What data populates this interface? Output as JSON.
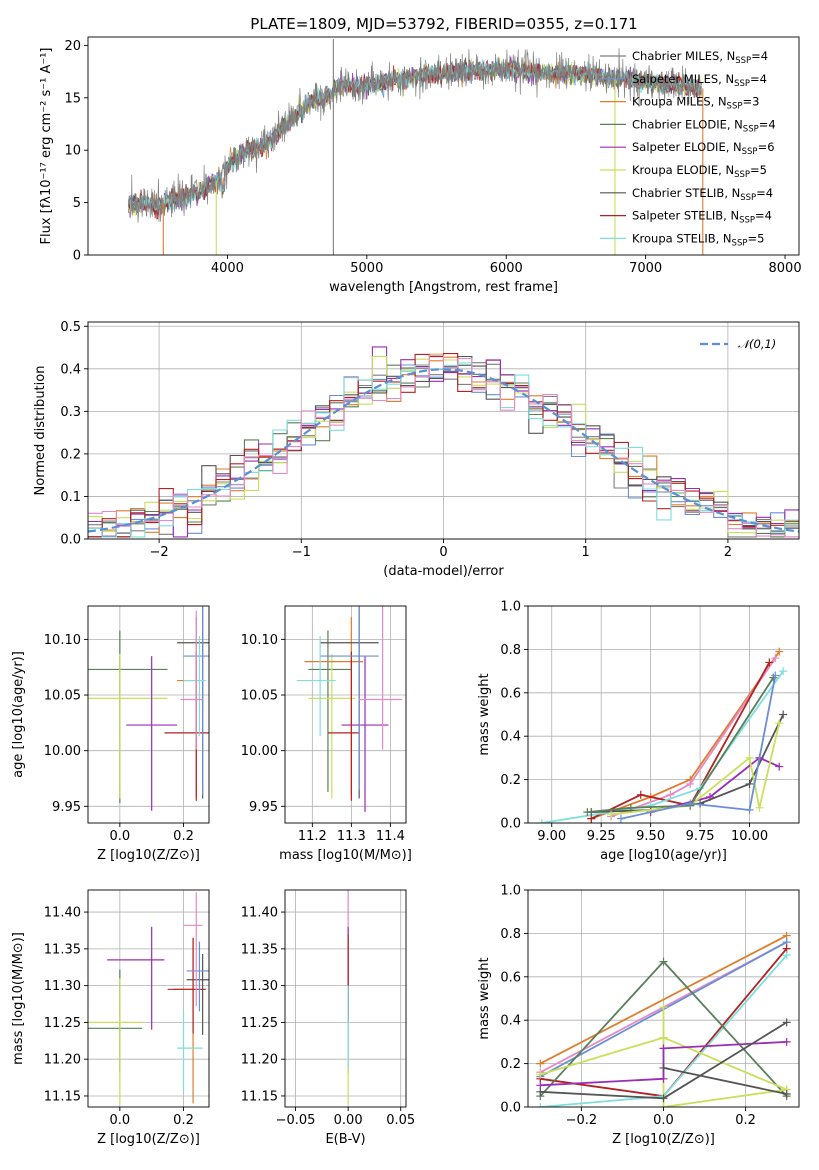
{
  "figure": {
    "title": "PLATE=1809, MJD=53792, FIBERID=0355, z=0.171"
  },
  "colors": {
    "Chabrier MILES": "#7f7f7f",
    "Salpeter MILES": "#6b8fd6",
    "Kroupa MILES": "#e07d2c",
    "Chabrier ELODIE": "#5a7f5a",
    "Salpeter ELODIE": "#9b2db5",
    "Kroupa ELODIE": "#c8e05a",
    "Chabrier STELIB": "#555555",
    "Salpeter STELIB": "#b22222",
    "Kroupa STELIB": "#7fdede",
    "Extra pink": "#e58ac8",
    "gaussian": "#5b8fd6"
  },
  "chart_data": [
    {
      "id": "spectrum",
      "type": "line",
      "xlabel": "wavelength [Angstrom, rest frame]",
      "ylabel": "Flux [fλ10⁻¹⁷ erg cm⁻² s⁻¹ A⁻¹]",
      "xlim": [
        3000,
        8100
      ],
      "ylim": [
        0,
        20.8
      ],
      "xticks": [
        4000,
        5000,
        6000,
        7000,
        8000
      ],
      "yticks": [
        0,
        5,
        10,
        15,
        20
      ],
      "legend_position": "top-right",
      "legend": [
        {
          "name": "Chabrier MILES",
          "sub": "SSP",
          "n": "4"
        },
        {
          "name": "Salpeter MILES",
          "sub": "SSP",
          "n": "4"
        },
        {
          "name": "Kroupa MILES",
          "sub": "SSP",
          "n": "3"
        },
        {
          "name": "Chabrier ELODIE",
          "sub": "SSP",
          "n": "4"
        },
        {
          "name": "Salpeter ELODIE",
          "sub": "SSP",
          "n": "6"
        },
        {
          "name": "Kroupa ELODIE",
          "sub": "SSP",
          "n": "5"
        },
        {
          "name": "Chabrier STELIB",
          "sub": "SSP",
          "n": "4"
        },
        {
          "name": "Salpeter STELIB",
          "sub": "SSP",
          "n": "4"
        },
        {
          "name": "Kroupa STELIB",
          "sub": "SSP",
          "n": "5"
        }
      ],
      "continuum": [
        [
          3290,
          4.8
        ],
        [
          3400,
          5.0
        ],
        [
          3500,
          4.7
        ],
        [
          3600,
          5.2
        ],
        [
          3700,
          5.6
        ],
        [
          3800,
          6.0
        ],
        [
          3900,
          6.8
        ],
        [
          3950,
          7.5
        ],
        [
          4000,
          8.6
        ],
        [
          4100,
          9.7
        ],
        [
          4200,
          10.2
        ],
        [
          4300,
          10.7
        ],
        [
          4400,
          12.3
        ],
        [
          4500,
          13.3
        ],
        [
          4600,
          14.6
        ],
        [
          4700,
          15.0
        ],
        [
          4800,
          16.0
        ],
        [
          4900,
          16.2
        ],
        [
          5000,
          16.2
        ],
        [
          5100,
          16.5
        ],
        [
          5200,
          16.8
        ],
        [
          5300,
          16.9
        ],
        [
          5400,
          17.1
        ],
        [
          5500,
          17.3
        ],
        [
          5600,
          17.4
        ],
        [
          5700,
          17.6
        ],
        [
          5800,
          17.6
        ],
        [
          5900,
          17.7
        ],
        [
          6000,
          17.8
        ],
        [
          6100,
          17.6
        ],
        [
          6200,
          17.4
        ],
        [
          6300,
          17.3
        ],
        [
          6400,
          17.4
        ],
        [
          6500,
          17.2
        ],
        [
          6600,
          17.3
        ],
        [
          6700,
          17.0
        ],
        [
          6800,
          16.9
        ],
        [
          6900,
          16.8
        ],
        [
          7000,
          16.5
        ],
        [
          7100,
          16.4
        ],
        [
          7200,
          16.3
        ],
        [
          7300,
          16.1
        ],
        [
          7400,
          15.9
        ]
      ],
      "spikes": [
        3540,
        3920,
        4760,
        6780,
        7410
      ]
    },
    {
      "id": "residuals",
      "type": "histogram",
      "xlabel": "(data-model)/error",
      "ylabel": "Normed distribution",
      "xlim": [
        -2.5,
        2.5
      ],
      "ylim": [
        0,
        0.51
      ],
      "xticks": [
        -2,
        -1,
        0,
        1,
        2
      ],
      "yticks": [
        0.0,
        0.1,
        0.2,
        0.3,
        0.4,
        0.5
      ],
      "legend": [
        "N(0,1)"
      ],
      "bin_width": 0.1,
      "bin_start": -2.5
    },
    {
      "id": "age_vs_Z",
      "type": "errorbar",
      "xlabel": "Z [log10(Z/Z⊙)]",
      "ylabel": "age [log10(age/yr)]",
      "xlim": [
        -0.1,
        0.28
      ],
      "ylim": [
        9.935,
        10.13
      ],
      "xticks": [
        0.0,
        0.2
      ],
      "yticks": [
        9.95,
        10.0,
        10.05,
        10.1
      ],
      "points": [
        {
          "s": "Chabrier ELODIE",
          "x": 0.0,
          "y": 10.073,
          "xe": [
            0.1,
            0.15
          ],
          "ye": [
            0.12,
            0.035
          ]
        },
        {
          "s": "Kroupa ELODIE",
          "x": 0.0,
          "y": 10.047,
          "xe": [
            0.1,
            0.15
          ],
          "ye": [
            0.09,
            0.04
          ]
        },
        {
          "s": "Salpeter ELODIE",
          "x": 0.1,
          "y": 10.023,
          "xe": [
            0.08,
            0.08
          ],
          "ye": [
            0.077,
            0.062
          ]
        },
        {
          "s": "Kroupa MILES",
          "x": 0.24,
          "y": 10.063,
          "xe": [
            0.06,
            0.0
          ],
          "ye": [
            0.105,
            0.057
          ]
        },
        {
          "s": "Salpeter STELIB",
          "x": 0.24,
          "y": 10.016,
          "xe": [
            0.1,
            0.04
          ],
          "ye": [
            0.061,
            0.073
          ]
        },
        {
          "s": "Chabrier STELIB",
          "x": 0.26,
          "y": 10.097,
          "xe": [
            0.08,
            0.02
          ],
          "ye": [
            0.14,
            0.032
          ]
        },
        {
          "s": "Salpeter MILES",
          "x": 0.26,
          "y": 10.085,
          "xe": [
            0.06,
            0.02
          ],
          "ye": [
            0.125,
            0.047
          ]
        },
        {
          "s": "Kroupa STELIB",
          "x": 0.25,
          "y": 10.063,
          "xe": [
            0.05,
            0.02
          ],
          "ye": [
            0.05,
            0.04
          ]
        },
        {
          "s": "Extra pink",
          "x": 0.24,
          "y": 10.046,
          "xe": [
            0.05,
            0.02
          ],
          "ye": [
            0.045,
            0.08
          ]
        }
      ]
    },
    {
      "id": "age_vs_mass",
      "type": "errorbar",
      "xlabel": "mass [log10(M/M⊙)]",
      "ylabel": "",
      "xlim": [
        11.13,
        11.44
      ],
      "ylim": [
        9.935,
        10.13
      ],
      "xticks": [
        11.2,
        11.3,
        11.4
      ],
      "yticks": [
        9.95,
        10.0,
        10.05,
        10.1
      ],
      "points": [
        {
          "s": "Chabrier ELODIE",
          "x": 11.24,
          "y": 10.073,
          "xe": [
            0.05,
            0.06
          ],
          "ye": [
            0.11,
            0.035
          ]
        },
        {
          "s": "Kroupa ELODIE",
          "x": 11.25,
          "y": 10.047,
          "xe": [
            0.06,
            0.06
          ],
          "ye": [
            0.09,
            0.04
          ]
        },
        {
          "s": "Salpeter ELODIE",
          "x": 11.335,
          "y": 10.023,
          "xe": [
            0.06,
            0.06
          ],
          "ye": [
            0.078,
            0.062
          ]
        },
        {
          "s": "Kroupa MILES",
          "x": 11.3,
          "y": 10.08,
          "xe": [
            0.12,
            0.03
          ],
          "ye": [
            0.12,
            0.04
          ]
        },
        {
          "s": "Salpeter STELIB",
          "x": 11.3,
          "y": 10.016,
          "xe": [
            0.06,
            0.02
          ],
          "ye": [
            0.061,
            0.073
          ]
        },
        {
          "s": "Chabrier STELIB",
          "x": 11.32,
          "y": 10.097,
          "xe": [
            0.1,
            0.05
          ],
          "ye": [
            0.14,
            0.032
          ]
        },
        {
          "s": "Salpeter MILES",
          "x": 11.32,
          "y": 10.085,
          "xe": [
            0.1,
            0.05
          ],
          "ye": [
            0.12,
            0.047
          ]
        },
        {
          "s": "Kroupa STELIB",
          "x": 11.22,
          "y": 10.063,
          "xe": [
            0.06,
            0.04
          ],
          "ye": [
            0.05,
            0.04
          ]
        },
        {
          "s": "Extra pink",
          "x": 11.38,
          "y": 10.046,
          "xe": [
            0.06,
            0.05
          ],
          "ye": [
            0.045,
            0.09
          ]
        }
      ]
    },
    {
      "id": "massweight_vs_age",
      "type": "line",
      "xlabel": "age [log10(age/yr)]",
      "ylabel": "mass weight",
      "xlim": [
        8.88,
        10.25
      ],
      "ylim": [
        0,
        1.0
      ],
      "xticks": [
        9.0,
        9.25,
        9.5,
        9.75,
        10.0
      ],
      "yticks": [
        0.0,
        0.2,
        0.4,
        0.6,
        0.8,
        1.0
      ],
      "series": [
        {
          "s": "Kroupa MILES",
          "x": [
            9.2,
            9.5,
            9.7,
            10.15
          ],
          "y": [
            0.02,
            0.12,
            0.2,
            0.79
          ]
        },
        {
          "s": "Extra pink",
          "x": [
            9.3,
            9.6,
            9.7,
            10.13
          ],
          "y": [
            0.03,
            0.13,
            0.18,
            0.76
          ]
        },
        {
          "s": "Salpeter STELIB",
          "x": [
            9.2,
            9.45,
            9.7,
            10.1
          ],
          "y": [
            0.02,
            0.13,
            0.08,
            0.74
          ]
        },
        {
          "s": "Kroupa STELIB",
          "x": [
            8.95,
            9.5,
            9.75,
            10.17
          ],
          "y": [
            0.0,
            0.08,
            0.16,
            0.7
          ]
        },
        {
          "s": "Chabrier STELIB",
          "x": [
            9.2,
            9.5,
            9.75,
            10.0,
            10.17
          ],
          "y": [
            0.05,
            0.06,
            0.09,
            0.18,
            0.5
          ]
        },
        {
          "s": "Salpeter ELODIE",
          "x": [
            9.5,
            9.8,
            10.05,
            10.15
          ],
          "y": [
            0.05,
            0.12,
            0.3,
            0.26
          ]
        },
        {
          "s": "Kroupa ELODIE",
          "x": [
            9.3,
            9.7,
            10.0,
            10.05,
            10.15
          ],
          "y": [
            0.04,
            0.08,
            0.3,
            0.07,
            0.46
          ]
        },
        {
          "s": "Chabrier ELODIE",
          "x": [
            9.18,
            9.4,
            9.7,
            10.12
          ],
          "y": [
            0.05,
            0.07,
            0.08,
            0.67
          ]
        },
        {
          "s": "Salpeter MILES",
          "x": [
            9.35,
            9.7,
            10.0,
            10.13
          ],
          "y": [
            0.02,
            0.09,
            0.06,
            0.68
          ]
        }
      ]
    },
    {
      "id": "mass_vs_Z",
      "type": "errorbar",
      "xlabel": "Z [log10(Z/Z⊙)]",
      "ylabel": "mass [log10(M/M⊙)]",
      "xlim": [
        -0.1,
        0.28
      ],
      "ylim": [
        11.135,
        11.43
      ],
      "xticks": [
        0.0,
        0.2
      ],
      "yticks": [
        11.15,
        11.2,
        11.25,
        11.3,
        11.35,
        11.4
      ],
      "points": [
        {
          "s": "Chabrier ELODIE",
          "x": 0.0,
          "y": 11.242,
          "xe": [
            0.1,
            0.07
          ],
          "ye": [
            0.06,
            0.08
          ]
        },
        {
          "s": "Kroupa ELODIE",
          "x": 0.0,
          "y": 11.25,
          "xe": [
            0.1,
            0.07
          ],
          "ye": [
            0.11,
            0.06
          ]
        },
        {
          "s": "Salpeter ELODIE",
          "x": 0.1,
          "y": 11.335,
          "xe": [
            0.14,
            0.04
          ],
          "ye": [
            0.095,
            0.045
          ]
        },
        {
          "s": "Kroupa MILES",
          "x": 0.23,
          "y": 11.295,
          "xe": [
            0.06,
            0.0
          ],
          "ye": [
            0.155,
            0.07
          ]
        },
        {
          "s": "Salpeter STELIB",
          "x": 0.23,
          "y": 11.295,
          "xe": [
            0.08,
            0.04
          ],
          "ye": [
            0.06,
            0.07
          ]
        },
        {
          "s": "Chabrier STELIB",
          "x": 0.26,
          "y": 11.308,
          "xe": [
            0.05,
            0.02
          ],
          "ye": [
            0.075,
            0.035
          ]
        },
        {
          "s": "Salpeter MILES",
          "x": 0.25,
          "y": 11.32,
          "xe": [
            0.04,
            0.03
          ],
          "ye": [
            0.055,
            0.04
          ]
        },
        {
          "s": "Kroupa STELIB",
          "x": 0.2,
          "y": 11.215,
          "xe": [
            0.02,
            0.06
          ],
          "ye": [
            0.06,
            0.05
          ]
        },
        {
          "s": "Extra pink",
          "x": 0.24,
          "y": 11.382,
          "xe": [
            0.04,
            0.02
          ],
          "ye": [
            0.11,
            0.045
          ]
        }
      ]
    },
    {
      "id": "mass_vs_ebv",
      "type": "errorbar",
      "xlabel": "E(B-V)",
      "ylabel": "",
      "xlim": [
        -0.06,
        0.055
      ],
      "ylim": [
        11.135,
        11.43
      ],
      "xticks": [
        -0.05,
        0.0,
        0.05
      ],
      "yticks": [
        11.15,
        11.2,
        11.25,
        11.3,
        11.35,
        11.4
      ],
      "points": [
        {
          "s": "Extra pink",
          "x": 0.0,
          "y": 11.3,
          "xe": [
            0,
            0
          ],
          "ye": [
            0.12,
            0.13
          ]
        },
        {
          "s": "Salpeter ELODIE",
          "x": 0.0,
          "y": 11.33,
          "xe": [
            0,
            0
          ],
          "ye": [
            0.08,
            0.05
          ]
        },
        {
          "s": "Kroupa ELODIE",
          "x": 0.0,
          "y": 11.2,
          "xe": [
            0,
            0
          ],
          "ye": [
            0.06,
            0.06
          ]
        },
        {
          "s": "Salpeter STELIB",
          "x": 0.0,
          "y": 11.3,
          "xe": [
            0,
            0
          ],
          "ye": [
            0.05,
            0.07
          ]
        },
        {
          "s": "Kroupa STELIB",
          "x": 0.0,
          "y": 11.25,
          "xe": [
            0,
            0
          ],
          "ye": [
            0.06,
            0.05
          ]
        }
      ]
    },
    {
      "id": "massweight_vs_Z",
      "type": "line",
      "xlabel": "Z [log10(Z/Z⊙)]",
      "ylabel": "mass weight",
      "xlim": [
        -0.33,
        0.33
      ],
      "ylim": [
        0,
        1.0
      ],
      "xticks": [
        -0.2,
        0.0,
        0.2
      ],
      "yticks": [
        0.0,
        0.2,
        0.4,
        0.6,
        0.8,
        1.0
      ],
      "series": [
        {
          "s": "Kroupa MILES",
          "x": [
            -0.3,
            0.3
          ],
          "y": [
            0.2,
            0.79
          ]
        },
        {
          "s": "Extra pink",
          "x": [
            -0.3,
            0.3
          ],
          "y": [
            0.16,
            0.76
          ]
        },
        {
          "s": "Salpeter MILES",
          "x": [
            -0.3,
            0.3
          ],
          "y": [
            0.14,
            0.76
          ]
        },
        {
          "s": "Salpeter STELIB",
          "x": [
            -0.3,
            0.0,
            0.3
          ],
          "y": [
            0.13,
            0.05,
            0.73
          ]
        },
        {
          "s": "Kroupa STELIB",
          "x": [
            -0.3,
            0.0,
            0.3
          ],
          "y": [
            0.0,
            0.05,
            0.7
          ]
        },
        {
          "s": "Chabrier ELODIE",
          "x": [
            -0.3,
            0.0,
            0.3
          ],
          "y": [
            0.05,
            0.67,
            0.05
          ]
        },
        {
          "s": "Kroupa ELODIE",
          "x": [
            -0.3,
            0.0,
            0.3
          ],
          "y": [
            0.15,
            0.32,
            0.08
          ]
        },
        {
          "s": "Kroupa ELODIE",
          "x": [
            0.0,
            0.0,
            0.3
          ],
          "y": [
            0.46,
            0.0,
            0.08
          ]
        },
        {
          "s": "Salpeter ELODIE",
          "x": [
            -0.3,
            0.0,
            0.0,
            0.3
          ],
          "y": [
            0.1,
            0.13,
            0.27,
            0.3
          ]
        },
        {
          "s": "Chabrier STELIB",
          "x": [
            -0.3,
            0.0,
            0.3
          ],
          "y": [
            0.07,
            0.04,
            0.39
          ]
        },
        {
          "s": "Chabrier STELIB",
          "x": [
            0.0,
            0.3
          ],
          "y": [
            0.18,
            0.06
          ]
        }
      ]
    }
  ]
}
